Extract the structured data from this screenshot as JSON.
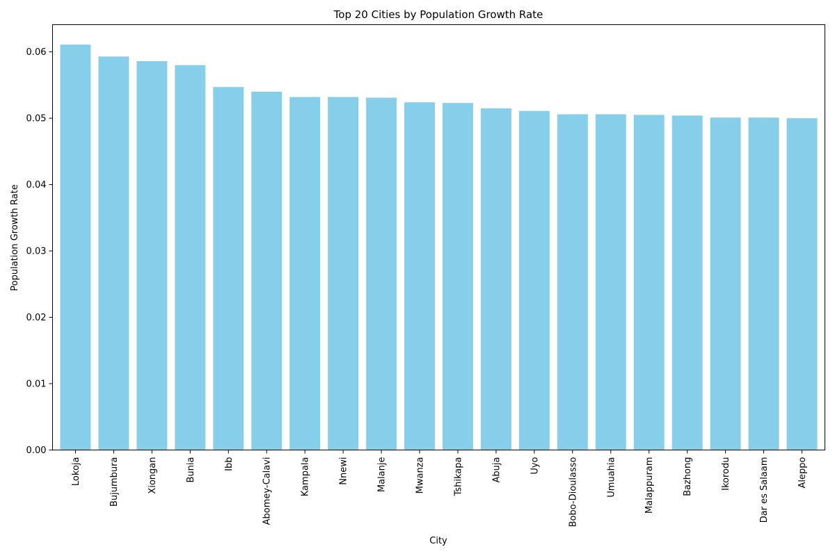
{
  "chart_data": {
    "type": "bar",
    "title": "Top 20 Cities by Population Growth Rate",
    "xlabel": "City",
    "ylabel": "Population Growth Rate",
    "categories": [
      "Lokoja",
      "Bujumbura",
      "Xiongan",
      "Bunia",
      "Ibb",
      "Abomey-Calavi",
      "Kampala",
      "Nnewi",
      "Malanje",
      "Mwanza",
      "Tshikapa",
      "Abuja",
      "Uyo",
      "Bobo-Dioulasso",
      "Umuahia",
      "Malappuram",
      "Bazhong",
      "Ikorodu",
      "Dar es Salaam",
      "Aleppo"
    ],
    "values": [
      0.0611,
      0.0593,
      0.0586,
      0.058,
      0.0547,
      0.054,
      0.0532,
      0.0532,
      0.0531,
      0.0524,
      0.0523,
      0.0515,
      0.0511,
      0.0506,
      0.0506,
      0.0505,
      0.0504,
      0.0501,
      0.0501,
      0.05
    ],
    "ylim": [
      0,
      0.0641
    ],
    "yticks": [
      "0.00",
      "0.01",
      "0.02",
      "0.03",
      "0.04",
      "0.05",
      "0.06"
    ],
    "ytick_values": [
      0,
      0.01,
      0.02,
      0.03,
      0.04,
      0.05,
      0.06
    ],
    "grid": false,
    "colors": {
      "bar": "#87ceeb",
      "axis": "#000000",
      "background": "#ffffff"
    }
  }
}
